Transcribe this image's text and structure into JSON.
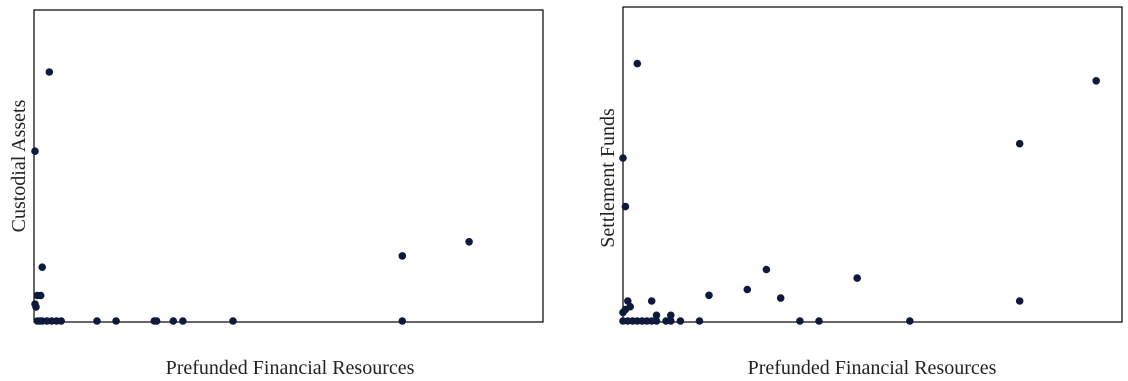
{
  "chart_data": [
    {
      "type": "scatter",
      "xlabel": "Prefunded Financial Resources",
      "ylabel": "Custodial Assets",
      "xlim": [
        0,
        100
      ],
      "ylim": [
        0,
        100
      ],
      "grid": false,
      "colors": {
        "point": "#0d1a3d",
        "frame": "#000000",
        "text": "#222222"
      },
      "points": [
        {
          "x": 3,
          "y": 88
        },
        {
          "x": 0,
          "y": 60
        },
        {
          "x": 1.5,
          "y": 19
        },
        {
          "x": 0.5,
          "y": 9
        },
        {
          "x": 1.2,
          "y": 9
        },
        {
          "x": 0,
          "y": 6
        },
        {
          "x": 0.2,
          "y": 5
        },
        {
          "x": 0.5,
          "y": 0
        },
        {
          "x": 1,
          "y": 0
        },
        {
          "x": 1.5,
          "y": 0
        },
        {
          "x": 2.5,
          "y": 0
        },
        {
          "x": 3.5,
          "y": 0
        },
        {
          "x": 4.5,
          "y": 0
        },
        {
          "x": 5.5,
          "y": 0
        },
        {
          "x": 13,
          "y": 0
        },
        {
          "x": 17,
          "y": 0
        },
        {
          "x": 25,
          "y": 0
        },
        {
          "x": 25.5,
          "y": 0
        },
        {
          "x": 29,
          "y": 0
        },
        {
          "x": 31,
          "y": 0
        },
        {
          "x": 41.5,
          "y": 0
        },
        {
          "x": 77,
          "y": 0
        },
        {
          "x": 77,
          "y": 23
        },
        {
          "x": 91,
          "y": 28
        }
      ]
    },
    {
      "type": "scatter",
      "xlabel": "Prefunded Financial Resources",
      "ylabel": "Settlement Funds",
      "xlim": [
        0,
        100
      ],
      "ylim": [
        0,
        100
      ],
      "grid": false,
      "colors": {
        "point": "#0d1a3d",
        "frame": "#000000",
        "text": "#222222"
      },
      "points": [
        {
          "x": 3,
          "y": 90
        },
        {
          "x": 0,
          "y": 57
        },
        {
          "x": 0.5,
          "y": 40
        },
        {
          "x": 99,
          "y": 84
        },
        {
          "x": 83,
          "y": 62
        },
        {
          "x": 30,
          "y": 18
        },
        {
          "x": 49,
          "y": 15
        },
        {
          "x": 26,
          "y": 11
        },
        {
          "x": 33,
          "y": 8
        },
        {
          "x": 18,
          "y": 9
        },
        {
          "x": 6,
          "y": 7
        },
        {
          "x": 83,
          "y": 7
        },
        {
          "x": 1,
          "y": 7
        },
        {
          "x": 1.5,
          "y": 5
        },
        {
          "x": 0.5,
          "y": 4
        },
        {
          "x": 0,
          "y": 3
        },
        {
          "x": 7,
          "y": 2
        },
        {
          "x": 10,
          "y": 2
        },
        {
          "x": 0,
          "y": 0
        },
        {
          "x": 1,
          "y": 0
        },
        {
          "x": 2,
          "y": 0
        },
        {
          "x": 3,
          "y": 0
        },
        {
          "x": 4,
          "y": 0
        },
        {
          "x": 5,
          "y": 0
        },
        {
          "x": 6,
          "y": 0
        },
        {
          "x": 7,
          "y": 0
        },
        {
          "x": 9,
          "y": 0
        },
        {
          "x": 10,
          "y": 0
        },
        {
          "x": 12,
          "y": 0
        },
        {
          "x": 16,
          "y": 0
        },
        {
          "x": 37,
          "y": 0
        },
        {
          "x": 41,
          "y": 0
        },
        {
          "x": 60,
          "y": 0
        }
      ]
    }
  ]
}
